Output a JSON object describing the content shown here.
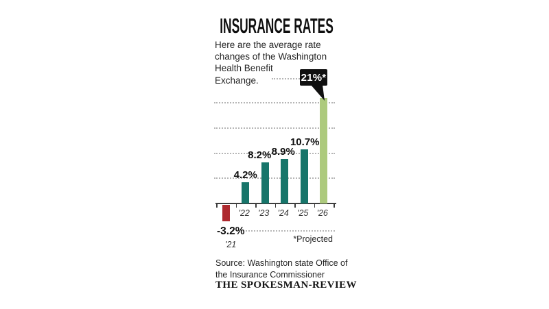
{
  "title": "INSURANCE RATES",
  "intro": {
    "lines": [
      "Here are the average rate",
      "changes of the Washington",
      "Health Benefit",
      "Exchange."
    ]
  },
  "chart_data": {
    "type": "bar",
    "title": "INSURANCE RATES",
    "subtitle": "Here are the average rate changes of the Washington Health Benefit Exchange.",
    "categories": [
      "'21",
      "'22",
      "'23",
      "'24",
      "'25",
      "'26"
    ],
    "values": [
      -3.2,
      4.2,
      8.2,
      8.9,
      10.7,
      21
    ],
    "value_labels": [
      "-3.2%",
      "4.2%",
      "8.2%",
      "8.9%",
      "10.7%",
      "21%*"
    ],
    "bar_styles": [
      "negative",
      "actual",
      "actual",
      "actual",
      "actual",
      "projected"
    ],
    "ylim": [
      -5,
      25
    ],
    "gridline_step": 5,
    "grid": true,
    "xlabel": "",
    "ylabel": "",
    "legend": "none",
    "callout": {
      "label": "21%*",
      "category": "'26"
    },
    "projected_note": "*Projected"
  },
  "colors": {
    "bar_actual": "#17756a",
    "bar_negative": "#ae292f",
    "bar_projected": "#adca7d",
    "callout_bg": "#101010",
    "callout_text": "#ffffff",
    "grid": "#b5b5b5",
    "axis": "#3d3d3d"
  },
  "footer": {
    "source_lines": [
      "Source: Washington state Office of",
      "the Insurance Commissioner"
    ],
    "credit": "THE SPOKESMAN-REVIEW"
  }
}
